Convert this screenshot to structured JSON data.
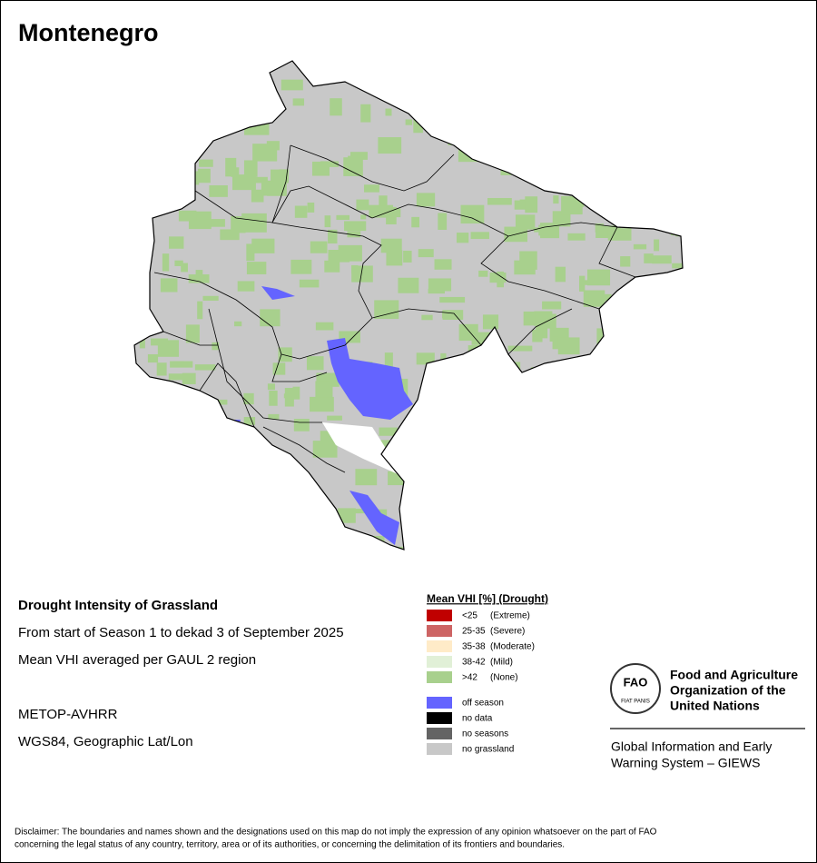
{
  "title": "Montenegro",
  "info": {
    "heading": "Drought Intensity of Grassland",
    "lines": [
      "From start of Season 1 to dekad 3 of September 2025",
      "Mean VHI averaged per GAUL 2 region"
    ],
    "source": [
      "METOP-AVHRR",
      "WGS84, Geographic Lat/Lon"
    ]
  },
  "legend": {
    "title": "Mean VHI [%] (Drought)",
    "classes": [
      {
        "range": "<25",
        "class": "(Extreme)",
        "color": "#c00000"
      },
      {
        "range": "25-35",
        "class": "(Severe)",
        "color": "#cd6464"
      },
      {
        "range": "35-38",
        "class": "(Moderate)",
        "color": "#ffebc8"
      },
      {
        "range": "38-42",
        "class": "(Mild)",
        "color": "#e1f0d7"
      },
      {
        "range": ">42",
        "class": "(None)",
        "color": "#a8d08d"
      }
    ],
    "other": [
      {
        "label": "off season",
        "color": "#6464ff"
      },
      {
        "label": "no data",
        "color": "#000000"
      },
      {
        "label": "no seasons",
        "color": "#646464"
      },
      {
        "label": "no grassland",
        "color": "#c8c8c8"
      }
    ]
  },
  "logo": {
    "emblem": "FAO",
    "motto": "FIAT PANIS",
    "organization": [
      "Food and Agriculture",
      "Organization of the",
      "United Nations"
    ],
    "system": [
      "Global Information and Early",
      "Warning System – GIEWS"
    ]
  },
  "disclaimer": [
    "Disclaimer: The boundaries and names shown and the designations used on this map do not imply the expression of any opinion whatsoever on the part of FAO",
    "concerning the legal status of any country, territory, area or of its authorities, or concerning the delimitation of its frontiers and boundaries."
  ]
}
